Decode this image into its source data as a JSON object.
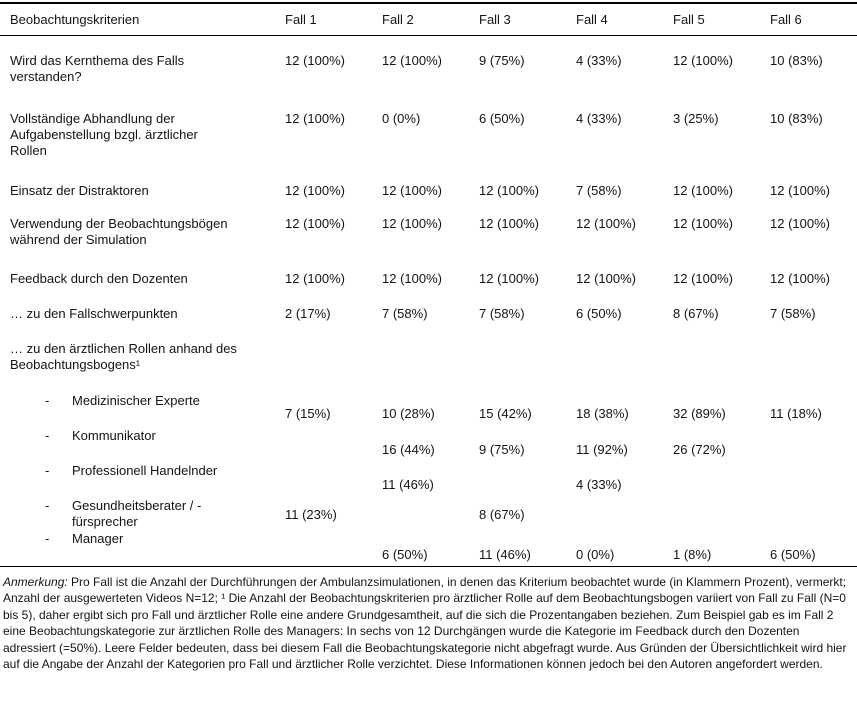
{
  "table": {
    "bullet": "-",
    "columns": [
      "Beobachtungskriterien",
      "Fall 1",
      "Fall 2",
      "Fall 3",
      "Fall 4",
      "Fall 5",
      "Fall 6"
    ],
    "rows": [
      {
        "label": "Wird das Kernthema des Falls\nverstanden?",
        "values": [
          "12 (100%)",
          "12 (100%)",
          "9 (75%)",
          "4 (33%)",
          "12 (100%)",
          "10 (83%)"
        ]
      },
      {
        "label": "Vollständige Abhandlung der\nAufgabenstellung bzgl. ärztlicher\nRollen",
        "values": [
          "12 (100%)",
          "0 (0%)",
          "6 (50%)",
          "4 (33%)",
          "3 (25%)",
          "10 (83%)"
        ]
      },
      {
        "label": "Einsatz der Distraktoren",
        "values": [
          "12 (100%)",
          "12 (100%)",
          "12 (100%)",
          "7 (58%)",
          "12 (100%)",
          "12 (100%)"
        ]
      },
      {
        "label": "Verwendung der Beobachtungsbögen\nwährend der Simulation",
        "values": [
          "12 (100%)",
          "12 (100%)",
          "12 (100%)",
          "12 (100%)",
          "12 (100%)",
          "12 (100%)"
        ]
      },
      {
        "label": "Feedback durch den Dozenten",
        "values": [
          "12 (100%)",
          "12 (100%)",
          "12 (100%)",
          "12 (100%)",
          "12 (100%)",
          "12 (100%)"
        ]
      },
      {
        "label": "… zu den Fallschwerpunkten",
        "values": [
          "2 (17%)",
          "7 (58%)",
          "7 (58%)",
          "6 (50%)",
          "8 (67%)",
          "7 (58%)"
        ]
      },
      {
        "label": "… zu den ärztlichen Rollen anhand des\nBeobachtungsbogens¹",
        "values": [
          "",
          "",
          "",
          "",
          "",
          ""
        ]
      },
      {
        "label": "Medizinischer Experte",
        "values": [
          "7 (15%)",
          "10 (28%)",
          "15 (42%)",
          "18 (38%)",
          "32 (89%)",
          "11 (18%)"
        ]
      },
      {
        "label": "Kommunikator",
        "values": [
          "",
          "16 (44%)",
          "9 (75%)",
          "11 (92%)",
          "26 (72%)",
          ""
        ]
      },
      {
        "label": "Professionell Handelnder",
        "values": [
          "",
          "11 (46%)",
          "",
          "4 (33%)",
          "",
          ""
        ]
      },
      {
        "label": "Gesundheitsberater / -\nfürsprecher",
        "values": [
          "11 (23%)",
          "",
          "8 (67%)",
          "",
          "",
          ""
        ]
      },
      {
        "label": "Manager",
        "values": [
          "",
          "6 (50%)",
          "11 (46%)",
          "0 (0%)",
          "1 (8%)",
          "6 (50%)"
        ]
      }
    ]
  },
  "footnote": {
    "label": "Anmerkung:",
    "text": " Pro Fall ist die Anzahl der Durchführungen der Ambulanzsimulationen, in denen das Kriterium beobachtet wurde (in Klammern Prozent), vermerkt; Anzahl der ausgewerteten Videos N=12; ¹ Die Anzahl der Beobachtungskriterien pro ärztlicher Rolle auf dem Beobachtungsbogen variiert von Fall zu Fall (N=0 bis 5), daher ergibt sich pro Fall und ärztlicher Rolle eine andere Grundgesamtheit, auf die sich die Prozentangaben beziehen. Zum Beispiel gab es im Fall 2 eine Beobachtungskategorie zur ärztlichen Rolle des Managers: In sechs von 12 Durchgängen wurde die Kategorie im Feedback durch den Dozenten adressiert (=50%). Leere Felder bedeuten, dass bei diesem Fall die Beobachtungskategorie nicht abgefragt wurde. Aus Gründen der Übersichtlichkeit wird hier auf die Angabe der Anzahl der Kategorien pro Fall und ärztlicher Rolle verzichtet. Diese Informationen können jedoch bei den Autoren angefordert werden."
  }
}
